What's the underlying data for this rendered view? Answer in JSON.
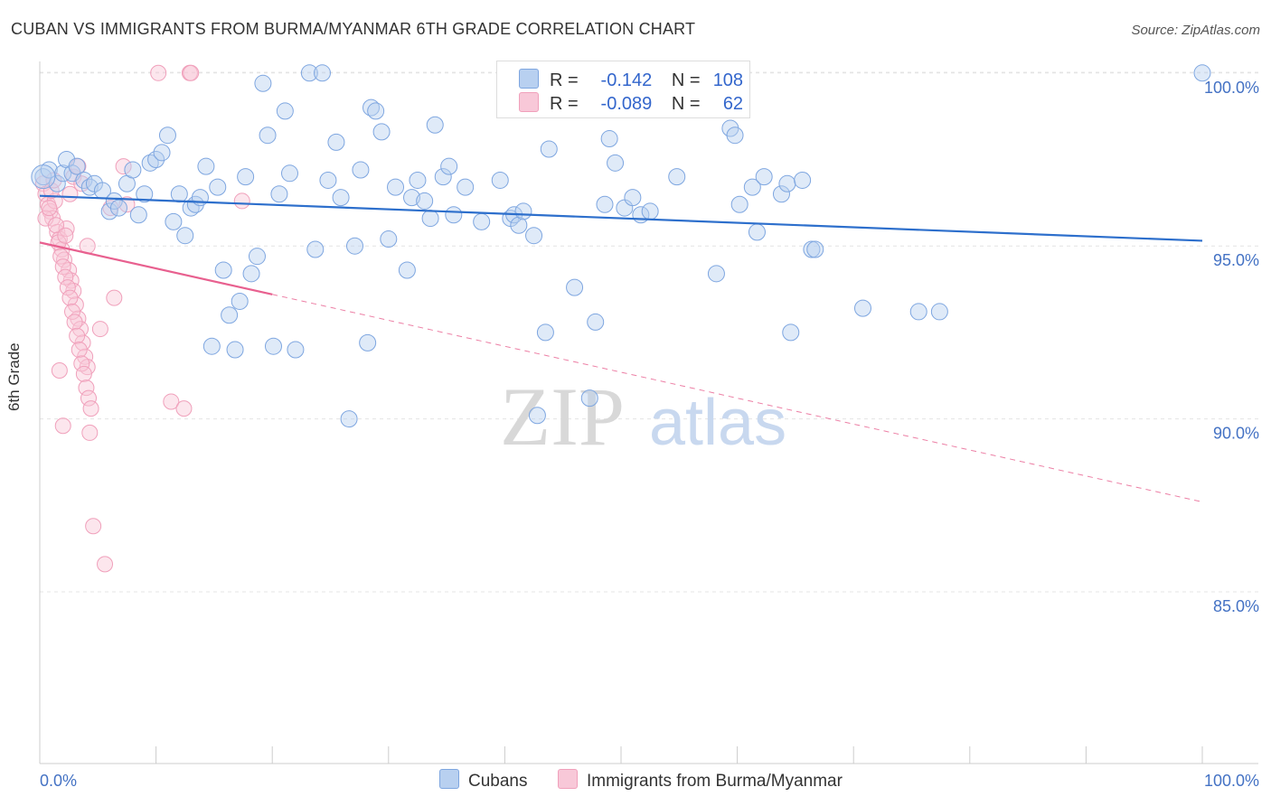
{
  "title": "CUBAN VS IMMIGRANTS FROM BURMA/MYANMAR 6TH GRADE CORRELATION CHART",
  "source": "Source: ZipAtlas.com",
  "watermark": {
    "zip": "ZIP",
    "atlas": "atlas"
  },
  "legend_top": {
    "cubans": {
      "r_label": "R =",
      "r_value": "-0.142",
      "n_label": "N =",
      "n_value": "108"
    },
    "burma": {
      "r_label": "R =",
      "r_value": "-0.089",
      "n_label": "N =",
      "n_value": "62"
    }
  },
  "chart_data": {
    "type": "scatter",
    "title": "CUBAN VS IMMIGRANTS FROM BURMA/MYANMAR 6TH GRADE CORRELATION CHART",
    "xlabel": "",
    "ylabel": "6th Grade",
    "xlim": [
      0,
      100
    ],
    "ylim": [
      80.5,
      101.0
    ],
    "x_tick_labels": [
      "0.0%",
      "100.0%"
    ],
    "y_ticks": [
      85,
      90,
      95,
      100
    ],
    "y_tick_labels": [
      "85.0%",
      "90.0%",
      "95.0%",
      "100.0%"
    ],
    "colors": {
      "cubans": "#7ea6e0",
      "cubans_line": "#2d6fcc",
      "burma": "#f0a0bb",
      "burma_line": "#e8608f"
    },
    "series": [
      {
        "name": "Cubans",
        "trend": {
          "x0": 0,
          "y0": 96.45,
          "x1": 100,
          "y1": 95.15
        },
        "points": [
          [
            0.3,
            97.0
          ],
          [
            0.8,
            97.2
          ],
          [
            1.5,
            96.8
          ],
          [
            2.0,
            97.1
          ],
          [
            2.3,
            97.5
          ],
          [
            2.8,
            97.1
          ],
          [
            3.2,
            97.3
          ],
          [
            3.8,
            96.9
          ],
          [
            4.3,
            96.7
          ],
          [
            4.7,
            96.8
          ],
          [
            5.4,
            96.6
          ],
          [
            6.0,
            96.0
          ],
          [
            6.4,
            96.3
          ],
          [
            6.8,
            96.1
          ],
          [
            7.5,
            96.8
          ],
          [
            8.0,
            97.2
          ],
          [
            8.5,
            95.9
          ],
          [
            9.0,
            96.5
          ],
          [
            9.5,
            97.4
          ],
          [
            10.0,
            97.5
          ],
          [
            10.5,
            97.7
          ],
          [
            11.0,
            98.2
          ],
          [
            11.5,
            95.7
          ],
          [
            12.0,
            96.5
          ],
          [
            12.5,
            95.3
          ],
          [
            13.0,
            96.1
          ],
          [
            13.4,
            96.2
          ],
          [
            13.8,
            96.4
          ],
          [
            14.3,
            97.3
          ],
          [
            14.8,
            92.1
          ],
          [
            15.3,
            96.7
          ],
          [
            15.8,
            94.3
          ],
          [
            16.3,
            93.0
          ],
          [
            16.8,
            92.0
          ],
          [
            17.2,
            93.4
          ],
          [
            17.7,
            97.0
          ],
          [
            18.2,
            94.2
          ],
          [
            18.7,
            94.7
          ],
          [
            19.2,
            99.7
          ],
          [
            19.6,
            98.2
          ],
          [
            20.1,
            92.1
          ],
          [
            20.6,
            96.5
          ],
          [
            21.1,
            98.9
          ],
          [
            21.5,
            97.1
          ],
          [
            22.0,
            92.0
          ],
          [
            23.2,
            100.0
          ],
          [
            23.7,
            94.9
          ],
          [
            24.3,
            100.0
          ],
          [
            24.8,
            96.9
          ],
          [
            25.5,
            98.0
          ],
          [
            25.9,
            96.4
          ],
          [
            26.6,
            90.0
          ],
          [
            27.1,
            95.0
          ],
          [
            27.6,
            97.2
          ],
          [
            28.2,
            92.2
          ],
          [
            28.5,
            99.0
          ],
          [
            28.9,
            98.9
          ],
          [
            29.4,
            98.3
          ],
          [
            30.0,
            95.2
          ],
          [
            30.6,
            96.7
          ],
          [
            31.6,
            94.3
          ],
          [
            32.0,
            96.4
          ],
          [
            32.5,
            96.9
          ],
          [
            33.1,
            96.3
          ],
          [
            33.6,
            95.8
          ],
          [
            34.0,
            98.5
          ],
          [
            34.7,
            97.0
          ],
          [
            35.2,
            97.3
          ],
          [
            35.6,
            95.9
          ],
          [
            36.6,
            96.7
          ],
          [
            38.0,
            95.7
          ],
          [
            39.6,
            96.9
          ],
          [
            40.5,
            95.8
          ],
          [
            40.8,
            95.9
          ],
          [
            41.2,
            95.6
          ],
          [
            41.6,
            96.0
          ],
          [
            42.5,
            95.3
          ],
          [
            42.8,
            90.1
          ],
          [
            43.5,
            92.5
          ],
          [
            43.8,
            97.8
          ],
          [
            46.0,
            93.8
          ],
          [
            47.3,
            90.6
          ],
          [
            47.8,
            92.8
          ],
          [
            48.6,
            96.2
          ],
          [
            49.0,
            98.1
          ],
          [
            49.5,
            97.4
          ],
          [
            50.3,
            96.1
          ],
          [
            51.0,
            96.4
          ],
          [
            51.7,
            95.9
          ],
          [
            52.5,
            96.0
          ],
          [
            54.8,
            97.0
          ],
          [
            58.2,
            94.2
          ],
          [
            59.4,
            98.4
          ],
          [
            59.8,
            98.2
          ],
          [
            60.2,
            96.2
          ],
          [
            61.3,
            96.7
          ],
          [
            61.7,
            95.4
          ],
          [
            62.3,
            97.0
          ],
          [
            63.8,
            96.5
          ],
          [
            64.3,
            96.8
          ],
          [
            64.6,
            92.5
          ],
          [
            65.6,
            96.9
          ],
          [
            66.4,
            94.9
          ],
          [
            66.7,
            94.9
          ],
          [
            70.8,
            93.2
          ],
          [
            75.6,
            93.1
          ],
          [
            77.4,
            93.1
          ],
          [
            100.0,
            100.0
          ]
        ]
      },
      {
        "name": "Immigrants from Burma/Myanmar",
        "trend": {
          "x0": 0,
          "y0": 95.1,
          "x1": 20,
          "y1": 93.6
        },
        "trend_dashed": {
          "x0": 20,
          "y0": 93.6,
          "x1": 100,
          "y1": 87.6
        },
        "points": [
          [
            0.3,
            96.8
          ],
          [
            0.5,
            96.5
          ],
          [
            0.7,
            96.2
          ],
          [
            0.9,
            96.0
          ],
          [
            1.1,
            95.8
          ],
          [
            1.3,
            96.3
          ],
          [
            1.5,
            95.4
          ],
          [
            1.7,
            95.2
          ],
          [
            1.9,
            94.9
          ],
          [
            2.1,
            94.6
          ],
          [
            2.3,
            95.5
          ],
          [
            2.5,
            94.3
          ],
          [
            2.7,
            94.0
          ],
          [
            2.9,
            93.7
          ],
          [
            3.1,
            93.3
          ],
          [
            3.3,
            92.9
          ],
          [
            3.5,
            92.6
          ],
          [
            3.7,
            92.2
          ],
          [
            3.9,
            91.8
          ],
          [
            4.1,
            91.5
          ],
          [
            0.5,
            95.8
          ],
          [
            0.8,
            96.1
          ],
          [
            1.0,
            96.6
          ],
          [
            1.2,
            96.9
          ],
          [
            1.4,
            95.6
          ],
          [
            1.6,
            95.1
          ],
          [
            1.8,
            94.7
          ],
          [
            2.0,
            94.4
          ],
          [
            2.2,
            94.1
          ],
          [
            2.4,
            93.8
          ],
          [
            2.6,
            93.5
          ],
          [
            2.8,
            93.1
          ],
          [
            3.0,
            92.8
          ],
          [
            3.2,
            92.4
          ],
          [
            3.4,
            92.0
          ],
          [
            3.6,
            91.6
          ],
          [
            3.8,
            91.3
          ],
          [
            4.0,
            90.9
          ],
          [
            4.2,
            90.6
          ],
          [
            4.4,
            90.3
          ],
          [
            1.7,
            91.4
          ],
          [
            2.0,
            89.8
          ],
          [
            2.2,
            95.3
          ],
          [
            2.6,
            96.5
          ],
          [
            2.9,
            97.0
          ],
          [
            3.3,
            97.3
          ],
          [
            3.6,
            96.8
          ],
          [
            4.1,
            95.0
          ],
          [
            4.3,
            89.6
          ],
          [
            4.6,
            86.9
          ],
          [
            5.2,
            92.6
          ],
          [
            5.6,
            85.8
          ],
          [
            6.1,
            96.1
          ],
          [
            6.4,
            93.5
          ],
          [
            7.2,
            97.3
          ],
          [
            7.5,
            96.2
          ],
          [
            11.3,
            90.5
          ],
          [
            12.4,
            90.3
          ],
          [
            12.9,
            100.0
          ],
          [
            17.4,
            96.3
          ],
          [
            10.2,
            100.0
          ],
          [
            13.0,
            100.0
          ]
        ]
      }
    ],
    "legend": [
      {
        "name": "Cubans",
        "r": -0.142,
        "n": 108
      },
      {
        "name": "Immigrants from Burma/Myanmar",
        "r": -0.089,
        "n": 62
      }
    ]
  },
  "bottom_legend": {
    "cubans": "Cubans",
    "burma": "Immigrants from Burma/Myanmar"
  }
}
